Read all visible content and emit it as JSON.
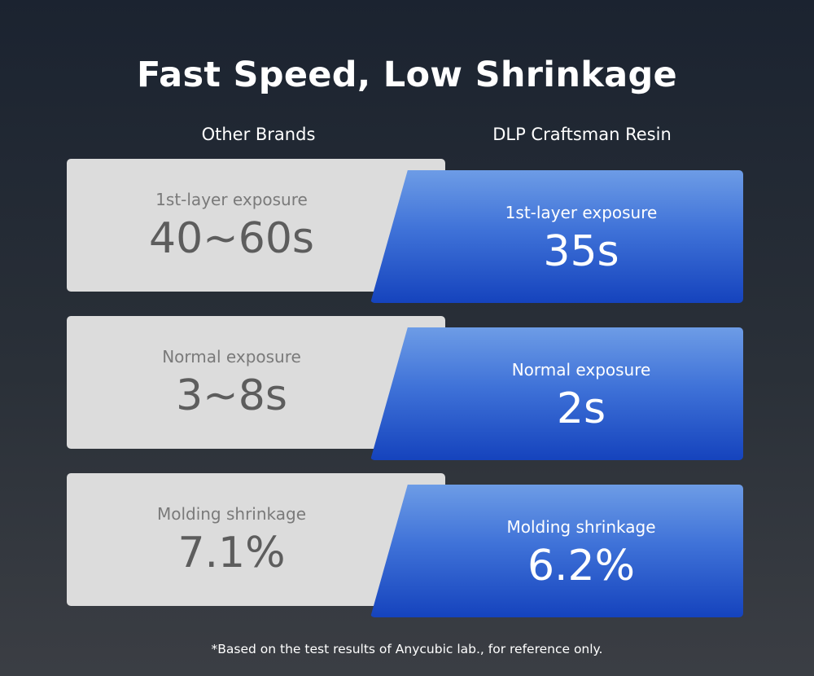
{
  "title": "Fast Speed, Low Shrinkage",
  "columns": {
    "left": "Other Brands",
    "right": "DLP Craftsman Resin"
  },
  "rows": [
    {
      "other": {
        "label": "1st-layer exposure",
        "value": "40~60s"
      },
      "dlp": {
        "label": "1st-layer exposure",
        "value": "35s"
      }
    },
    {
      "other": {
        "label": "Normal exposure",
        "value": "3~8s"
      },
      "dlp": {
        "label": "Normal exposure",
        "value": "2s"
      }
    },
    {
      "other": {
        "label": "Molding shrinkage",
        "value": "7.1%"
      },
      "dlp": {
        "label": "Molding shrinkage",
        "value": "6.2%"
      }
    }
  ],
  "footnote": "*Based on the test results of Anycubic lab., for reference only.",
  "colors": {
    "other_card": "#dcdcdc",
    "dlp_card_top": "#6d9ce6",
    "dlp_card_bottom": "#1543bd",
    "background_top": "#1b2330"
  }
}
